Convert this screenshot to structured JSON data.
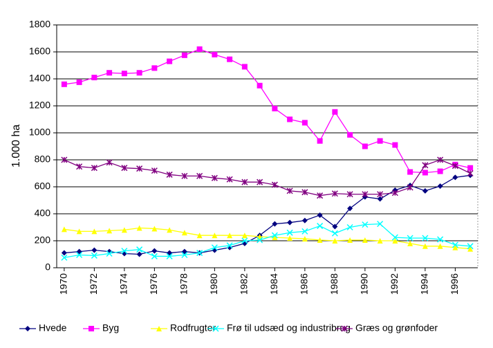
{
  "chart_data": {
    "type": "line",
    "y_label": "1.000 ha",
    "x": [
      1970,
      1971,
      1972,
      1973,
      1974,
      1975,
      1976,
      1977,
      1978,
      1979,
      1980,
      1981,
      1982,
      1983,
      1984,
      1985,
      1986,
      1987,
      1988,
      1989,
      1990,
      1991,
      1992,
      1993,
      1994,
      1995,
      1996,
      1997
    ],
    "xlim": [
      1969.5,
      1997.5
    ],
    "xticks": [
      1970,
      1972,
      1974,
      1976,
      1978,
      1980,
      1982,
      1984,
      1986,
      1988,
      1990,
      1992,
      1994,
      1996
    ],
    "ylim": [
      0,
      1800
    ],
    "yticks": [
      0,
      200,
      400,
      600,
      800,
      1000,
      1200,
      1400,
      1600,
      1800
    ],
    "grid": true,
    "legend": "bottom",
    "series": [
      {
        "name": "Hvede",
        "color": "#000080",
        "marker": "diamond",
        "values": [
          110,
          120,
          130,
          120,
          105,
          100,
          125,
          110,
          120,
          110,
          130,
          150,
          180,
          240,
          325,
          335,
          350,
          390,
          305,
          440,
          525,
          510,
          575,
          610,
          570,
          605,
          670,
          685
        ]
      },
      {
        "name": "Byg",
        "color": "#ff00ff",
        "marker": "square",
        "values": [
          1360,
          1375,
          1410,
          1445,
          1440,
          1445,
          1480,
          1530,
          1575,
          1620,
          1580,
          1545,
          1490,
          1350,
          1180,
          1100,
          1075,
          940,
          1155,
          985,
          900,
          940,
          910,
          710,
          705,
          715,
          765,
          740
        ]
      },
      {
        "name": "Rodfrugter",
        "color": "#ffff00",
        "marker": "triangle",
        "values": [
          285,
          270,
          270,
          275,
          280,
          295,
          290,
          280,
          260,
          240,
          240,
          240,
          240,
          230,
          225,
          220,
          215,
          205,
          200,
          205,
          205,
          200,
          200,
          180,
          160,
          160,
          150,
          140
        ]
      },
      {
        "name": "Frø til udsæd og industribrug",
        "color": "#00ffff",
        "marker": "cross",
        "values": [
          75,
          95,
          90,
          105,
          125,
          135,
          85,
          85,
          95,
          110,
          150,
          165,
          200,
          205,
          240,
          260,
          270,
          310,
          255,
          300,
          320,
          325,
          225,
          220,
          220,
          210,
          170,
          160
        ]
      },
      {
        "name": "Græs og grønfoder",
        "color": "#800080",
        "marker": "asterisk",
        "values": [
          800,
          750,
          740,
          780,
          740,
          735,
          720,
          690,
          680,
          680,
          665,
          655,
          635,
          635,
          615,
          570,
          560,
          535,
          550,
          545,
          545,
          545,
          555,
          595,
          760,
          800,
          755,
          700
        ]
      }
    ]
  }
}
